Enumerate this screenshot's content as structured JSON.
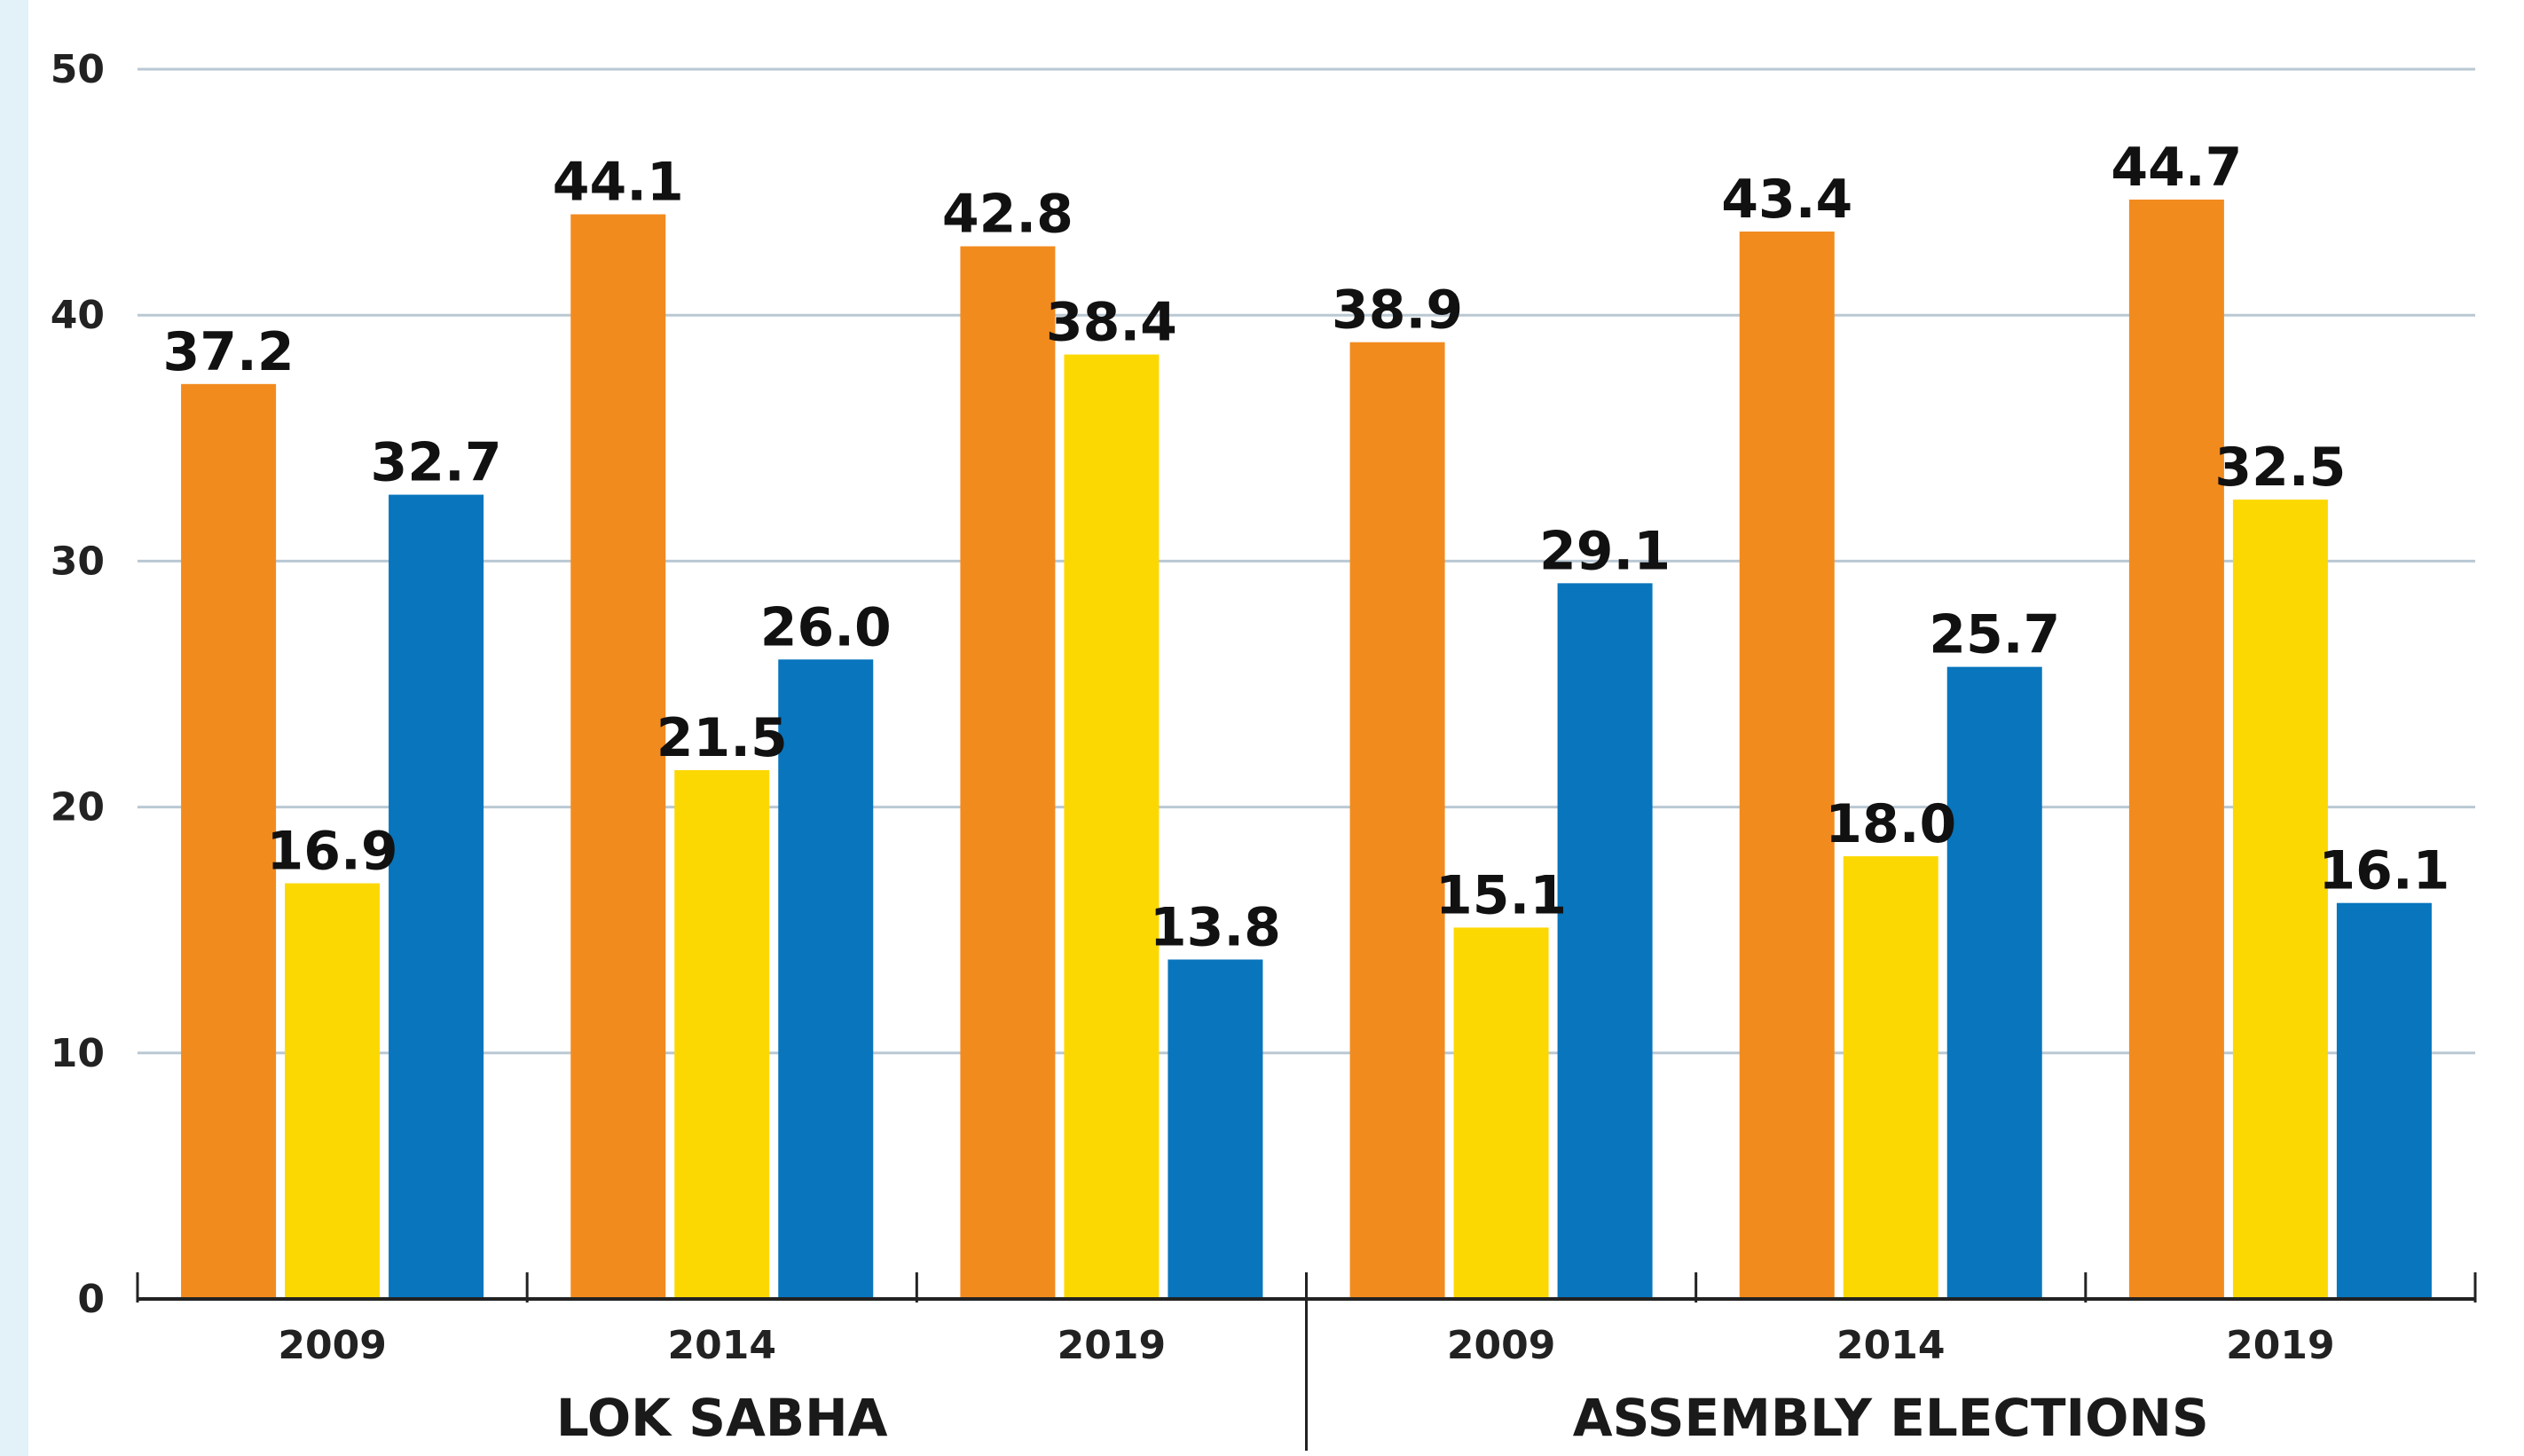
{
  "chart_data": {
    "type": "bar",
    "ylim": [
      0,
      50
    ],
    "yticks": [
      0,
      10,
      20,
      30,
      40,
      50
    ],
    "grid": true,
    "colors": [
      "#f28b1e",
      "#fcd803",
      "#0875bd"
    ],
    "groups": [
      {
        "label": "LOK SABHA",
        "categories": [
          "2009",
          "2014",
          "2019"
        ]
      },
      {
        "label": "ASSEMBLY ELECTIONS",
        "categories": [
          "2009",
          "2014",
          "2019"
        ]
      }
    ],
    "series": [
      {
        "values": [
          37.2,
          44.1,
          42.8,
          38.9,
          43.4,
          44.7
        ]
      },
      {
        "values": [
          16.9,
          21.5,
          38.4,
          15.1,
          18.0,
          32.5
        ]
      },
      {
        "values": [
          32.7,
          26.0,
          13.8,
          29.1,
          25.7,
          16.1
        ]
      }
    ]
  }
}
